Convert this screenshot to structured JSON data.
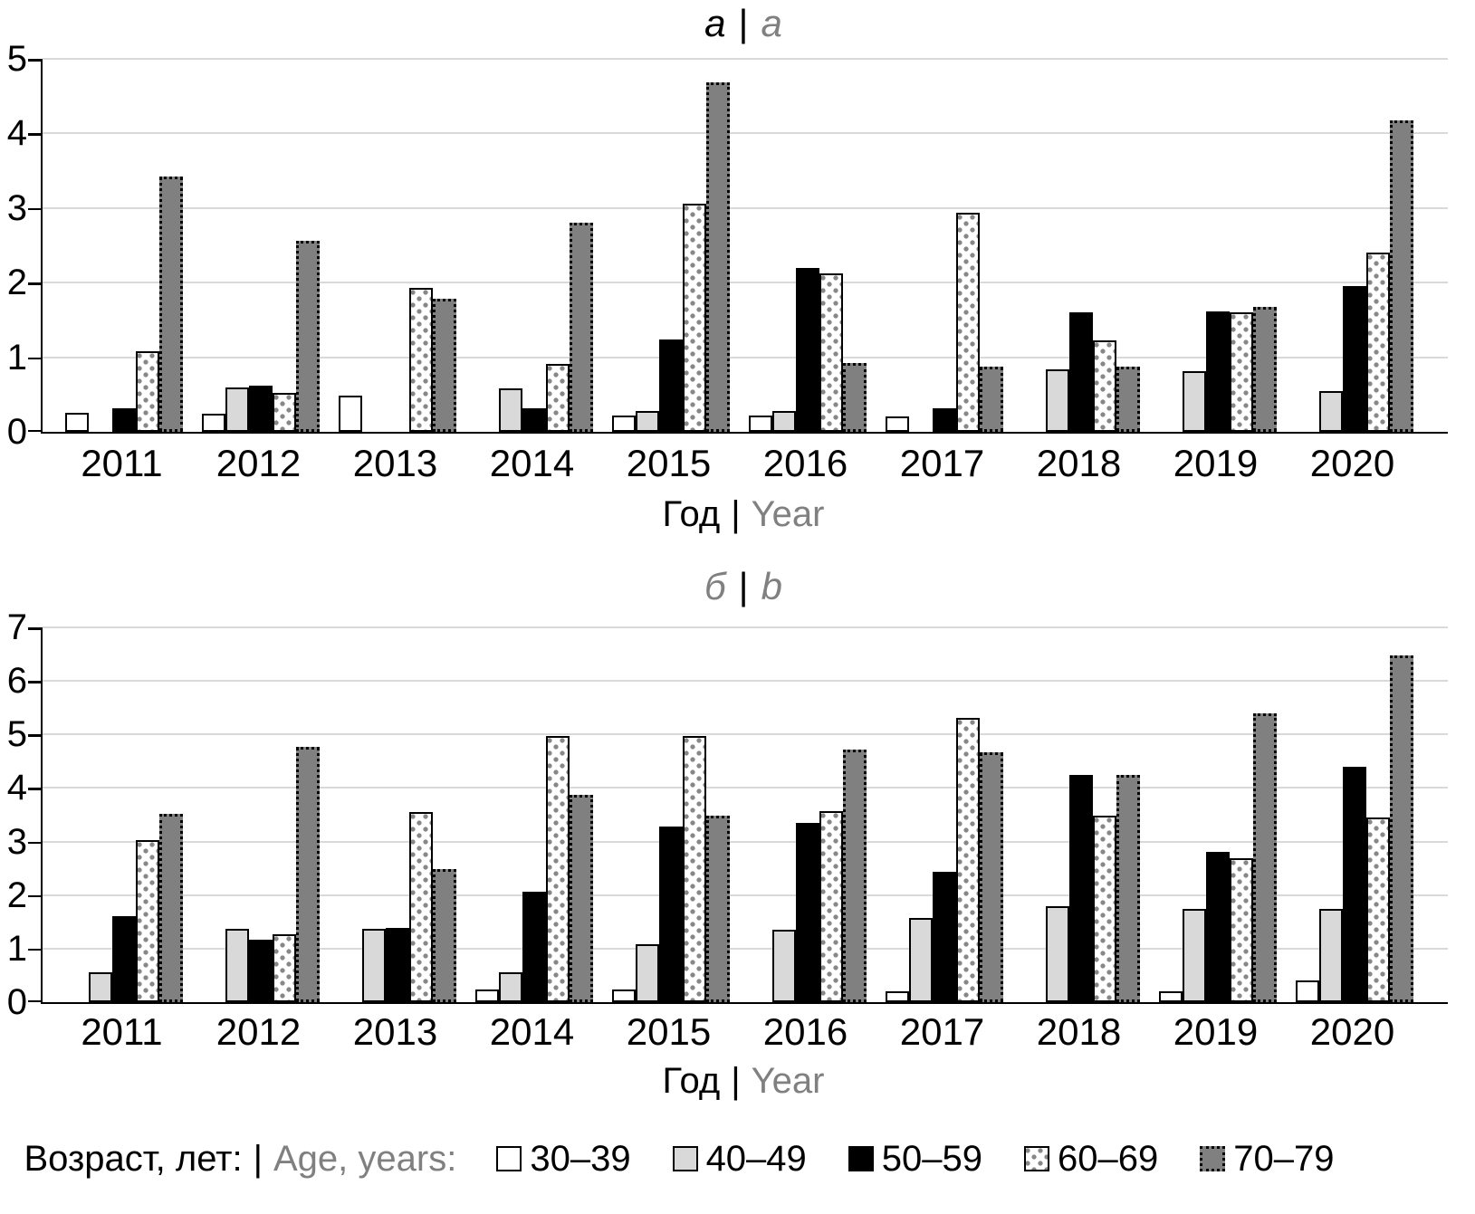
{
  "text": {
    "divider": "|"
  },
  "legend": {
    "title_ru": "Возраст, лет:",
    "title_en": "Age, years:",
    "items": [
      {
        "label": "30–39",
        "swatch": "white-open"
      },
      {
        "label": "40–49",
        "swatch": "light-gray"
      },
      {
        "label": "50–59",
        "swatch": "black-solid"
      },
      {
        "label": "60–69",
        "swatch": "dotted-pattern"
      },
      {
        "label": "70–79",
        "swatch": "gray-dotted-border"
      }
    ]
  },
  "colors": {
    "white_fill": "#ffffff",
    "light_gray_fill": "#d9d9d9",
    "black_fill": "#000000",
    "dot_pattern_gray": "#878787",
    "gray_fill": "#808080",
    "gridline": "#d9d9d9",
    "secondary_text": "#808080",
    "primary_text": "#000000"
  },
  "chart_data": [
    {
      "type": "bar",
      "panel_label": {
        "ru": "a",
        "en": "a"
      },
      "xlabel": {
        "ru": "Год",
        "en": "Year"
      },
      "ylim": [
        0,
        5
      ],
      "yticks": [
        "5",
        "4",
        "3",
        "2",
        "1",
        "0"
      ],
      "grid": true,
      "legend_position": "shared-bottom",
      "categories": [
        "2011",
        "2012",
        "2013",
        "2014",
        "2015",
        "2016",
        "2017",
        "2018",
        "2019",
        "2020"
      ],
      "series": [
        {
          "name": "30–39",
          "values": [
            0.25,
            0.24,
            0.48,
            0,
            0.22,
            0.22,
            0.21,
            0,
            0,
            0
          ]
        },
        {
          "name": "40–49",
          "values": [
            0,
            0.6,
            0,
            0.58,
            0.28,
            0.28,
            0,
            0.84,
            0.81,
            0.55
          ]
        },
        {
          "name": "50–59",
          "values": [
            0.31,
            0.62,
            0,
            0.32,
            1.24,
            2.2,
            0.32,
            1.6,
            1.61,
            1.95
          ]
        },
        {
          "name": "60–69",
          "values": [
            1.08,
            0.52,
            1.93,
            0.91,
            3.06,
            2.13,
            2.94,
            1.23,
            1.6,
            2.4
          ]
        },
        {
          "name": "70–79",
          "values": [
            3.42,
            2.56,
            1.78,
            2.8,
            4.68,
            0.92,
            0.87,
            0.87,
            1.68,
            4.18
          ]
        }
      ]
    },
    {
      "type": "bar",
      "panel_label": {
        "ru": "б",
        "en": "b"
      },
      "xlabel": {
        "ru": "Год",
        "en": "Year"
      },
      "ylim": [
        0,
        7
      ],
      "yticks": [
        "7",
        "6",
        "5",
        "4",
        "3",
        "2",
        "1",
        "0"
      ],
      "grid": true,
      "legend_position": "shared-bottom",
      "categories": [
        "2011",
        "2012",
        "2013",
        "2014",
        "2015",
        "2016",
        "2017",
        "2018",
        "2019",
        "2020"
      ],
      "series": [
        {
          "name": "30–39",
          "values": [
            0,
            0,
            0,
            0.23,
            0.23,
            0,
            0.2,
            0,
            0.2,
            0.4
          ]
        },
        {
          "name": "40–49",
          "values": [
            0.55,
            1.37,
            1.37,
            0.55,
            1.09,
            1.35,
            1.57,
            1.79,
            1.75,
            1.74
          ]
        },
        {
          "name": "50–59",
          "values": [
            1.61,
            1.16,
            1.38,
            2.07,
            3.28,
            3.34,
            2.44,
            4.24,
            2.81,
            4.4
          ]
        },
        {
          "name": "60–69",
          "values": [
            3.03,
            1.26,
            3.55,
            4.97,
            4.97,
            3.57,
            5.31,
            3.49,
            2.69,
            3.45
          ]
        },
        {
          "name": "70–79",
          "values": [
            3.51,
            4.76,
            2.49,
            3.88,
            3.49,
            4.72,
            4.66,
            4.25,
            5.39,
            6.47
          ]
        }
      ]
    }
  ]
}
